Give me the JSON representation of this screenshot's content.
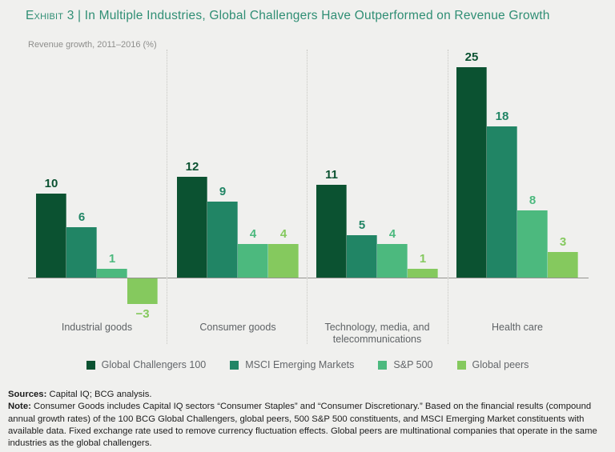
{
  "header": {
    "exhibit_label": "Exhibit 3",
    "separator": " | ",
    "title": "In Multiple Industries, Global Challengers Have Outperformed on Revenue Growth"
  },
  "chart_data": {
    "type": "bar",
    "subtitle": "Revenue growth, 2011–2016 (%)",
    "categories": [
      "Industrial goods",
      "Consumer goods",
      "Technology, media, and telecommunications",
      "Health care"
    ],
    "series": [
      {
        "name": "Global Challengers 100",
        "color": "#0b5231",
        "values": [
          10,
          12,
          11,
          25
        ]
      },
      {
        "name": "MSCI Emerging Markets",
        "color": "#218565",
        "values": [
          6,
          9,
          5,
          18
        ]
      },
      {
        "name": "S&P 500",
        "color": "#4cb97e",
        "values": [
          1,
          4,
          4,
          8
        ]
      },
      {
        "name": "Global peers",
        "color": "#85c95e",
        "values": [
          -3,
          4,
          1,
          3
        ]
      }
    ],
    "ylim": [
      -3,
      25
    ],
    "grid": false,
    "value_labels": true,
    "legend_position": "bottom",
    "group_separators": "dotted"
  },
  "footer": {
    "sources_label": "Sources:",
    "sources_text": " Capital IQ; BCG analysis.",
    "note_label": "Note:",
    "note_text": " Consumer Goods includes Capital IQ sectors “Consumer Staples” and “Consumer Discretionary.” Based on the financial results (compound annual growth rates) of the 100 BCG Global Challengers, global peers, 500 S&P 500 constituents, and MSCI Emerging Market constituents with available data. Fixed exchange rate used to remove currency fluctuation effects. Global peers are multinational companies that operate in the same industries as the global challengers."
  }
}
